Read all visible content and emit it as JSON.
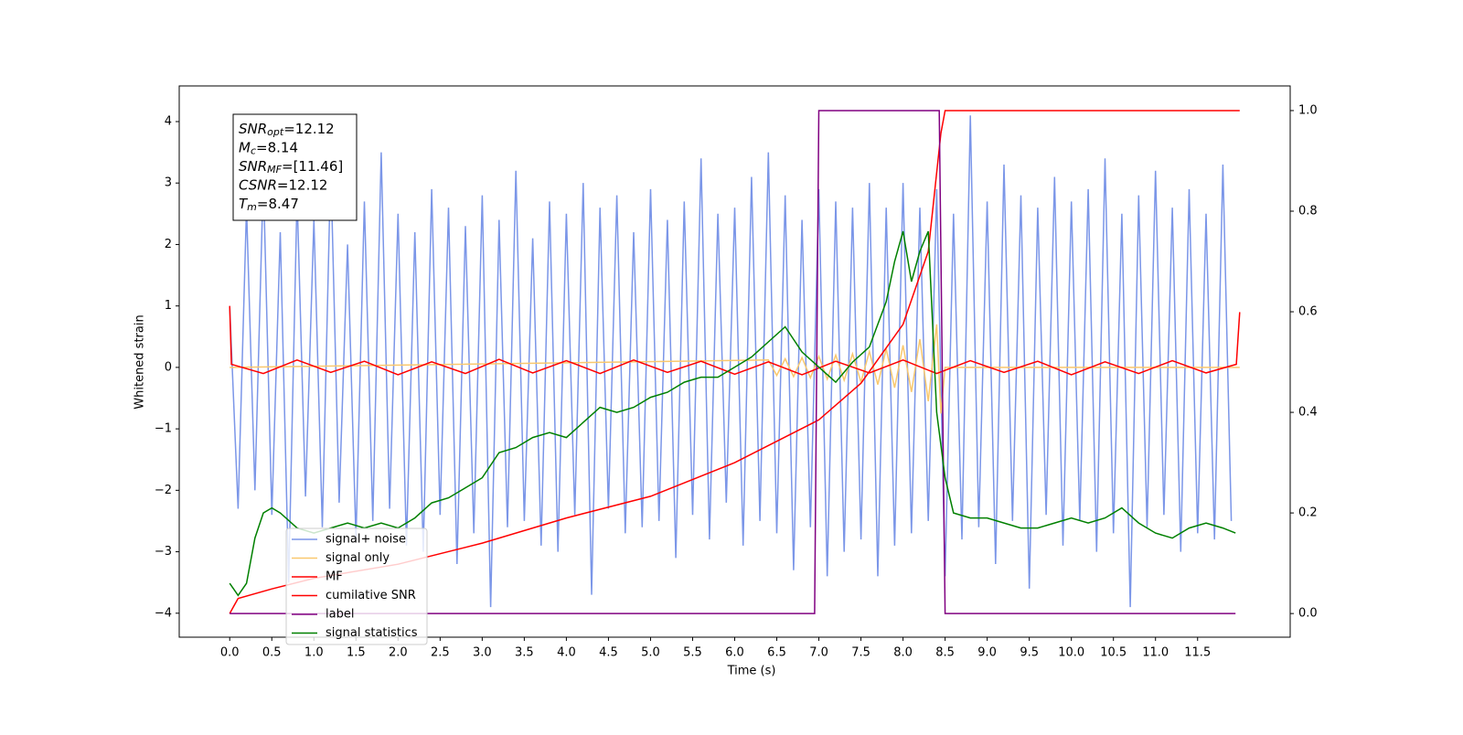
{
  "chart_data": {
    "type": "line",
    "x_label": "Time (s)",
    "y_label": "Whitened strain",
    "xlim": [
      -0.6,
      12.6
    ],
    "ylim": [
      -4.39,
      4.58
    ],
    "y2lim": [
      -0.047,
      1.049
    ],
    "xticks": [
      {
        "value": 0,
        "label": "0.0"
      },
      0.5,
      {
        "value": 1,
        "label": "1.0"
      },
      1.5,
      {
        "value": 2,
        "label": "2.0"
      },
      2.5,
      {
        "value": 3,
        "label": "3.0"
      },
      3.5,
      {
        "value": 4,
        "label": "4.0"
      },
      4.5,
      {
        "value": 5,
        "label": "5.0"
      },
      5.5,
      {
        "value": 6,
        "label": "6.0"
      },
      6.5,
      {
        "value": 7,
        "label": "7.0"
      },
      7.5,
      {
        "value": 8,
        "label": "8.0"
      },
      8.5,
      {
        "value": 9,
        "label": "9.0"
      },
      9.5,
      {
        "value": 10,
        "label": "10.0"
      },
      10.5,
      {
        "value": 11,
        "label": "11.0"
      },
      11.5
    ],
    "yticks": [
      {
        "value": -4,
        "label": "−4"
      },
      {
        "value": -3,
        "label": "−3"
      },
      {
        "value": -2,
        "label": "−2"
      },
      {
        "value": -1,
        "label": "−1"
      },
      0,
      1,
      2,
      3,
      4
    ],
    "y2ticks": [
      {
        "value": 0,
        "label": "0.0"
      },
      0.2,
      0.4,
      0.6,
      0.8,
      {
        "value": 1,
        "label": "1.0"
      }
    ],
    "annotations": [
      {
        "symbol": "SNR",
        "subscript": "opt",
        "text": "=12.12"
      },
      {
        "symbol": "M",
        "subscript": "c",
        "text": "=8.14"
      },
      {
        "symbol": "SNR",
        "subscript": "MF",
        "text": "=[11.46]"
      },
      {
        "symbol": "CSNR",
        "text": "=12.12"
      },
      {
        "symbol": "T",
        "subscript": "m",
        "text": "=8.47"
      }
    ],
    "legend": "lower left",
    "series": [
      {
        "name": "signal+ noise",
        "color": "#7b96e8",
        "x": [
          0.0,
          0.1,
          0.2,
          0.3,
          0.4,
          0.5,
          0.6,
          0.7,
          0.8,
          0.9,
          1.0,
          1.1,
          1.2,
          1.3,
          1.4,
          1.5,
          1.6,
          1.7,
          1.8,
          1.9,
          2.0,
          2.1,
          2.2,
          2.3,
          2.4,
          2.5,
          2.6,
          2.7,
          2.8,
          2.9,
          3.0,
          3.1,
          3.2,
          3.3,
          3.4,
          3.5,
          3.6,
          3.7,
          3.8,
          3.9,
          4.0,
          4.1,
          4.2,
          4.3,
          4.4,
          4.5,
          4.6,
          4.7,
          4.8,
          4.9,
          5.0,
          5.1,
          5.2,
          5.3,
          5.4,
          5.5,
          5.6,
          5.7,
          5.8,
          5.9,
          6.0,
          6.1,
          6.2,
          6.3,
          6.4,
          6.5,
          6.6,
          6.7,
          6.8,
          6.9,
          7.0,
          7.1,
          7.2,
          7.3,
          7.4,
          7.5,
          7.6,
          7.7,
          7.8,
          7.9,
          8.0,
          8.1,
          8.2,
          8.3,
          8.4,
          8.5,
          8.6,
          8.7,
          8.8,
          8.9,
          9.0,
          9.1,
          9.2,
          9.3,
          9.4,
          9.5,
          9.6,
          9.7,
          9.8,
          9.9,
          10.0,
          10.1,
          10.2,
          10.3,
          10.4,
          10.5,
          10.6,
          10.7,
          10.8,
          10.9,
          11.0,
          11.1,
          11.2,
          11.3,
          11.4,
          11.5,
          11.6,
          11.7,
          11.8,
          11.9
        ],
        "values": [
          1.0,
          -2.3,
          2.6,
          -2.0,
          3.1,
          -2.4,
          2.2,
          -3.5,
          2.8,
          -2.1,
          2.4,
          -2.6,
          3.3,
          -2.2,
          2.0,
          -2.8,
          2.7,
          -2.5,
          3.5,
          -2.3,
          2.5,
          -2.9,
          2.2,
          -3.0,
          2.9,
          -2.4,
          2.6,
          -3.2,
          2.3,
          -2.7,
          2.8,
          -3.9,
          2.4,
          -2.6,
          3.2,
          -2.5,
          2.1,
          -2.9,
          2.7,
          -3.0,
          2.5,
          -2.4,
          3.0,
          -3.7,
          2.6,
          -2.3,
          2.8,
          -2.7,
          2.2,
          -2.6,
          2.9,
          -2.5,
          2.4,
          -3.1,
          2.7,
          -2.4,
          3.4,
          -2.8,
          2.5,
          -2.2,
          2.6,
          -2.9,
          3.1,
          -2.5,
          3.5,
          -2.7,
          2.8,
          -3.3,
          2.4,
          -2.6,
          2.9,
          -3.4,
          2.7,
          -3.0,
          2.6,
          -2.8,
          3.0,
          -3.4,
          2.6,
          -2.9,
          3.0,
          -2.7,
          2.6,
          -2.5,
          2.9,
          -3.4,
          2.5,
          -2.8,
          4.1,
          -2.6,
          2.7,
          -3.2,
          3.3,
          -2.5,
          2.8,
          -3.6,
          2.6,
          -2.4,
          3.1,
          -2.9,
          2.7,
          -2.5,
          2.9,
          -3.0,
          3.4,
          -2.7,
          2.5,
          -3.9,
          2.8,
          -2.6,
          3.2,
          -2.4,
          2.6,
          -3.0,
          2.9,
          -2.7,
          2.5,
          -2.8,
          3.3,
          -2.5
        ]
      },
      {
        "name": "signal only",
        "color": "#f9c86e",
        "x": [
          0.0,
          6.4,
          6.5,
          6.6,
          6.7,
          6.8,
          6.9,
          7.0,
          7.1,
          7.2,
          7.3,
          7.4,
          7.5,
          7.6,
          7.7,
          7.8,
          7.9,
          8.0,
          8.1,
          8.2,
          8.3,
          8.4,
          8.45,
          8.5,
          12.0
        ],
        "values": [
          0,
          0.12,
          -0.13,
          0.14,
          -0.15,
          0.16,
          -0.17,
          0.18,
          -0.19,
          0.2,
          -0.21,
          0.22,
          -0.24,
          0.26,
          -0.28,
          0.3,
          -0.33,
          0.36,
          -0.4,
          0.46,
          -0.55,
          0.7,
          -0.75,
          0,
          0
        ]
      },
      {
        "name": "MF",
        "color": "#ff0000",
        "x": [
          0,
          0.02,
          0.4,
          0.8,
          1.2,
          1.6,
          2.0,
          2.4,
          2.8,
          3.2,
          3.6,
          4.0,
          4.4,
          4.8,
          5.2,
          5.6,
          6.0,
          6.4,
          6.8,
          7.2,
          7.6,
          8.0,
          8.4,
          8.8,
          9.2,
          9.6,
          10.0,
          10.4,
          10.8,
          11.2,
          11.6,
          11.96,
          12.0
        ],
        "values": [
          1.0,
          0.05,
          -0.1,
          0.12,
          -0.08,
          0.1,
          -0.12,
          0.09,
          -0.1,
          0.13,
          -0.09,
          0.11,
          -0.1,
          0.12,
          -0.08,
          0.1,
          -0.11,
          0.09,
          -0.12,
          0.1,
          -0.09,
          0.12,
          -0.1,
          0.11,
          -0.08,
          0.1,
          -0.12,
          0.09,
          -0.1,
          0.11,
          -0.09,
          0.05,
          0.9
        ]
      },
      {
        "name": "cumilative SNR",
        "color": "#ff0000",
        "axis": "y2",
        "x": [
          0,
          0.1,
          0.5,
          1.0,
          2.0,
          3.0,
          4.0,
          5.0,
          6.0,
          7.0,
          7.5,
          8.0,
          8.3,
          8.45,
          8.5,
          12.0
        ],
        "values": [
          0.0,
          0.03,
          0.049,
          0.07,
          0.098,
          0.14,
          0.19,
          0.233,
          0.3,
          0.385,
          0.458,
          0.575,
          0.72,
          0.955,
          1.0,
          1.0
        ]
      },
      {
        "name": "label",
        "color": "#800080",
        "axis": "y2",
        "x": [
          0,
          6.95,
          7.0,
          8.43,
          8.5,
          11.95
        ],
        "values": [
          0,
          0,
          1,
          1,
          0,
          0
        ]
      },
      {
        "name": "signal statistics",
        "color": "#008000",
        "axis": "y2",
        "x": [
          0,
          0.1,
          0.2,
          0.3,
          0.4,
          0.5,
          0.6,
          0.8,
          1.0,
          1.2,
          1.4,
          1.6,
          1.8,
          2.0,
          2.2,
          2.4,
          2.6,
          2.8,
          3.0,
          3.2,
          3.4,
          3.6,
          3.8,
          4.0,
          4.2,
          4.4,
          4.6,
          4.8,
          5.0,
          5.2,
          5.4,
          5.6,
          5.8,
          6.0,
          6.2,
          6.4,
          6.6,
          6.8,
          7.0,
          7.2,
          7.4,
          7.6,
          7.8,
          7.9,
          8.0,
          8.1,
          8.2,
          8.3,
          8.4,
          8.5,
          8.6,
          8.8,
          9.0,
          9.2,
          9.4,
          9.6,
          9.8,
          10.0,
          10.2,
          10.4,
          10.6,
          10.8,
          11.0,
          11.2,
          11.4,
          11.6,
          11.8,
          11.95
        ],
        "values": [
          0.06,
          0.036,
          0.06,
          0.15,
          0.2,
          0.21,
          0.2,
          0.17,
          0.16,
          0.17,
          0.18,
          0.17,
          0.18,
          0.17,
          0.19,
          0.22,
          0.23,
          0.25,
          0.27,
          0.32,
          0.33,
          0.35,
          0.36,
          0.35,
          0.38,
          0.41,
          0.4,
          0.41,
          0.43,
          0.44,
          0.46,
          0.47,
          0.47,
          0.49,
          0.51,
          0.54,
          0.57,
          0.52,
          0.49,
          0.46,
          0.5,
          0.53,
          0.62,
          0.7,
          0.76,
          0.66,
          0.72,
          0.76,
          0.4,
          0.27,
          0.2,
          0.19,
          0.19,
          0.18,
          0.17,
          0.17,
          0.18,
          0.19,
          0.18,
          0.19,
          0.21,
          0.18,
          0.16,
          0.15,
          0.17,
          0.18,
          0.17,
          0.16
        ]
      }
    ]
  }
}
